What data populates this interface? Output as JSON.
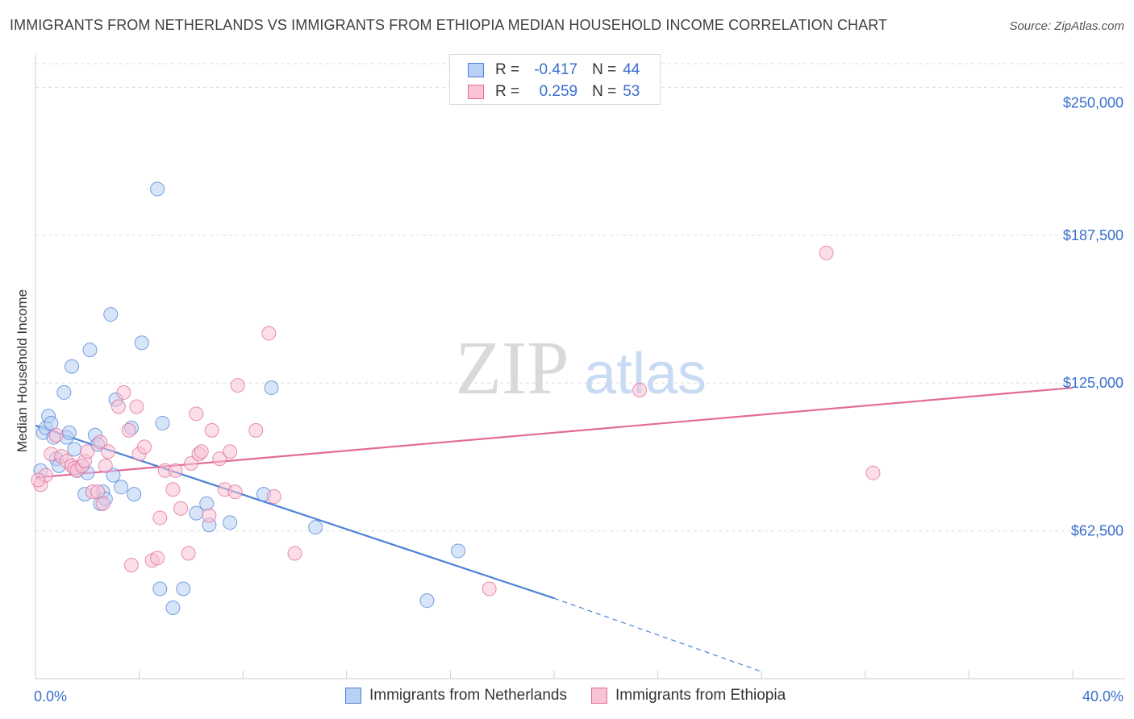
{
  "header": {
    "title": "IMMIGRANTS FROM NETHERLANDS VS IMMIGRANTS FROM ETHIOPIA MEDIAN HOUSEHOLD INCOME CORRELATION CHART",
    "source": "Source: ZipAtlas.com"
  },
  "watermark": {
    "zip": "ZIP",
    "atlas": "atlas"
  },
  "legend": {
    "r_label": "R =",
    "n_label": "N =",
    "rows": [
      {
        "r": "-0.417",
        "n": "44"
      },
      {
        "r": "0.259",
        "n": "53"
      }
    ]
  },
  "colors": {
    "netherlands": "#4b82d8",
    "netherlands_fill": "#b8d0f3",
    "ethiopia": "#e36b97",
    "ethiopia_fill": "#f7c3d5",
    "axis_text": "#3a6fcf",
    "grid": "#dcdcdc"
  },
  "chart_data": {
    "type": "scatter",
    "title": "IMMIGRANTS FROM NETHERLANDS VS IMMIGRANTS FROM ETHIOPIA MEDIAN HOUSEHOLD INCOME CORRELATION CHART",
    "xlabel": "",
    "ylabel": "Median Household Income",
    "xlim": [
      0,
      40
    ],
    "ylim": [
      0,
      260000
    ],
    "x_tick_labels": [
      "0.0%",
      "40.0%"
    ],
    "y_ticks": [
      62500,
      125000,
      187500,
      250000
    ],
    "y_tick_labels": [
      "$62,500",
      "$125,000",
      "$187,500",
      "$250,000"
    ],
    "grid": true,
    "series": [
      {
        "name": "Immigrants from Netherlands",
        "r": -0.417,
        "n": 44,
        "points": [
          [
            0.2,
            88000
          ],
          [
            0.3,
            104000
          ],
          [
            0.4,
            106000
          ],
          [
            0.5,
            111000
          ],
          [
            0.6,
            108000
          ],
          [
            0.7,
            102000
          ],
          [
            0.8,
            93000
          ],
          [
            0.9,
            90000
          ],
          [
            1.1,
            121000
          ],
          [
            1.2,
            102000
          ],
          [
            1.3,
            104000
          ],
          [
            1.4,
            132000
          ],
          [
            1.5,
            97000
          ],
          [
            1.6,
            88000
          ],
          [
            1.8,
            90000
          ],
          [
            1.9,
            78000
          ],
          [
            2.0,
            87000
          ],
          [
            2.1,
            139000
          ],
          [
            2.3,
            103000
          ],
          [
            2.4,
            99000
          ],
          [
            2.5,
            74000
          ],
          [
            2.6,
            79000
          ],
          [
            2.7,
            76000
          ],
          [
            2.9,
            154000
          ],
          [
            3.0,
            86000
          ],
          [
            3.1,
            118000
          ],
          [
            3.3,
            81000
          ],
          [
            3.7,
            106000
          ],
          [
            3.8,
            78000
          ],
          [
            4.1,
            142000
          ],
          [
            4.7,
            207000
          ],
          [
            4.8,
            38000
          ],
          [
            4.9,
            108000
          ],
          [
            5.3,
            30000
          ],
          [
            5.7,
            38000
          ],
          [
            6.2,
            70000
          ],
          [
            6.6,
            74000
          ],
          [
            6.7,
            65000
          ],
          [
            7.5,
            66000
          ],
          [
            8.8,
            78000
          ],
          [
            9.1,
            123000
          ],
          [
            10.8,
            64000
          ],
          [
            15.1,
            33000
          ],
          [
            16.3,
            54000
          ]
        ],
        "trend": {
          "solid": [
            [
              0,
              107000
            ],
            [
              20,
              34000
            ]
          ],
          "dashed": [
            [
              20,
              34000
            ],
            [
              28,
              3000
            ]
          ]
        }
      },
      {
        "name": "Immigrants from Ethiopia",
        "r": 0.259,
        "n": 53,
        "points": [
          [
            0.2,
            82000
          ],
          [
            0.4,
            86000
          ],
          [
            0.6,
            95000
          ],
          [
            0.8,
            103000
          ],
          [
            1.0,
            94000
          ],
          [
            1.2,
            92000
          ],
          [
            1.4,
            90000
          ],
          [
            1.5,
            89000
          ],
          [
            1.6,
            88000
          ],
          [
            1.8,
            90000
          ],
          [
            1.9,
            92000
          ],
          [
            2.0,
            96000
          ],
          [
            2.2,
            79000
          ],
          [
            2.4,
            79000
          ],
          [
            2.5,
            100000
          ],
          [
            2.6,
            74000
          ],
          [
            2.7,
            90000
          ],
          [
            2.8,
            96000
          ],
          [
            3.2,
            115000
          ],
          [
            3.4,
            121000
          ],
          [
            3.6,
            105000
          ],
          [
            3.7,
            48000
          ],
          [
            3.9,
            115000
          ],
          [
            4.0,
            95000
          ],
          [
            4.2,
            98000
          ],
          [
            4.5,
            50000
          ],
          [
            4.7,
            51000
          ],
          [
            4.8,
            68000
          ],
          [
            5.0,
            88000
          ],
          [
            5.3,
            80000
          ],
          [
            5.4,
            88000
          ],
          [
            5.6,
            72000
          ],
          [
            5.9,
            53000
          ],
          [
            6.0,
            91000
          ],
          [
            6.2,
            112000
          ],
          [
            6.3,
            95000
          ],
          [
            6.4,
            96000
          ],
          [
            6.7,
            69000
          ],
          [
            6.8,
            105000
          ],
          [
            7.1,
            93000
          ],
          [
            7.3,
            80000
          ],
          [
            7.5,
            96000
          ],
          [
            7.7,
            79000
          ],
          [
            7.8,
            124000
          ],
          [
            8.5,
            105000
          ],
          [
            9.0,
            146000
          ],
          [
            9.2,
            77000
          ],
          [
            10.0,
            53000
          ],
          [
            17.5,
            38000
          ],
          [
            23.3,
            122000
          ],
          [
            30.5,
            180000
          ],
          [
            32.3,
            87000
          ],
          [
            0.1,
            84000
          ]
        ],
        "trend": {
          "solid": [
            [
              0,
              85000
            ],
            [
              40,
              123000
            ]
          ]
        }
      }
    ]
  },
  "bottom_legend": [
    "Immigrants from Netherlands",
    "Immigrants from Ethiopia"
  ]
}
